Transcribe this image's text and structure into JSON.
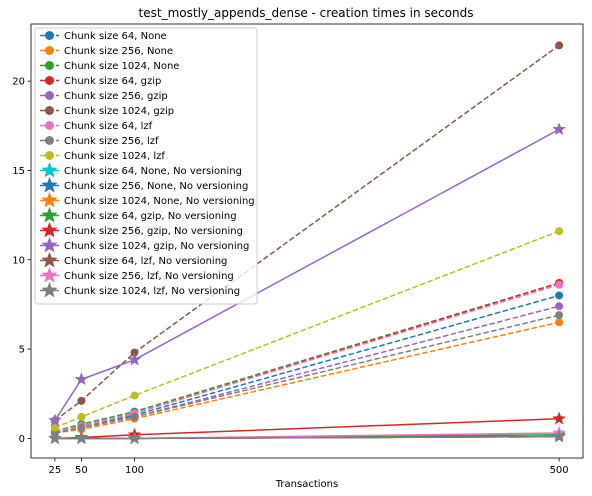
{
  "chart_data": {
    "type": "line",
    "title": "test_mostly_appends_dense - creation times in seconds",
    "xlabel": "Transactions",
    "ylabel": "",
    "x": [
      25,
      50,
      100,
      500
    ],
    "xticks": [
      "25",
      "50",
      "100",
      "500"
    ],
    "yticks": [
      "0",
      "5",
      "10",
      "15",
      "20"
    ],
    "xlim": [
      2.5,
      522.5
    ],
    "ylim": [
      -1.1,
      23.2
    ],
    "legend_position": "upper-left",
    "series": [
      {
        "name": "Chunk size 64, None",
        "color": "#1f77b4",
        "dashed": true,
        "marker": "circle",
        "values": [
          0.3,
          0.6,
          1.3,
          8.0
        ]
      },
      {
        "name": "Chunk size 256, None",
        "color": "#ff7f0e",
        "dashed": true,
        "marker": "circle",
        "values": [
          0.3,
          0.5,
          1.1,
          6.5
        ]
      },
      {
        "name": "Chunk size 1024, None",
        "color": "#2ca02c",
        "dashed": true,
        "marker": "circle",
        "values": [
          0.4,
          0.8,
          1.5,
          8.7
        ]
      },
      {
        "name": "Chunk size 64, gzip",
        "color": "#d62728",
        "dashed": true,
        "marker": "circle",
        "values": [
          0.4,
          0.7,
          1.4,
          8.7
        ]
      },
      {
        "name": "Chunk size 256, gzip",
        "color": "#9467bd",
        "dashed": true,
        "marker": "circle",
        "values": [
          0.3,
          0.6,
          1.2,
          7.4
        ]
      },
      {
        "name": "Chunk size 1024, gzip",
        "color": "#8c564b",
        "dashed": true,
        "marker": "circle",
        "values": [
          1.0,
          2.1,
          4.8,
          22.0
        ]
      },
      {
        "name": "Chunk size 64, lzf",
        "color": "#e377c2",
        "dashed": true,
        "marker": "circle",
        "values": [
          0.4,
          0.7,
          1.4,
          8.6
        ]
      },
      {
        "name": "Chunk size 256, lzf",
        "color": "#7f7f7f",
        "dashed": true,
        "marker": "circle",
        "values": [
          0.3,
          0.6,
          1.2,
          6.9
        ]
      },
      {
        "name": "Chunk size 1024, lzf",
        "color": "#bcbd22",
        "dashed": true,
        "marker": "circle",
        "values": [
          0.6,
          1.2,
          2.4,
          11.6
        ]
      },
      {
        "name": "Chunk size 64, None, No versioning",
        "color": "#17becf",
        "dashed": false,
        "marker": "star",
        "values": [
          0.0,
          0.0,
          0.0,
          0.1
        ]
      },
      {
        "name": "Chunk size 256, None, No versioning",
        "color": "#1f77b4",
        "dashed": false,
        "marker": "star",
        "values": [
          0.0,
          0.0,
          0.0,
          0.1
        ]
      },
      {
        "name": "Chunk size 1024, None, No versioning",
        "color": "#ff7f0e",
        "dashed": false,
        "marker": "star",
        "values": [
          0.0,
          0.0,
          0.0,
          0.1
        ]
      },
      {
        "name": "Chunk size 64, gzip, No versioning",
        "color": "#2ca02c",
        "dashed": false,
        "marker": "star",
        "values": [
          0.0,
          0.0,
          0.0,
          0.2
        ]
      },
      {
        "name": "Chunk size 256, gzip, No versioning",
        "color": "#d62728",
        "dashed": false,
        "marker": "star",
        "values": [
          0.0,
          0.05,
          0.2,
          1.1
        ]
      },
      {
        "name": "Chunk size 1024, gzip, No versioning",
        "color": "#9467bd",
        "dashed": false,
        "marker": "star",
        "values": [
          1.0,
          3.3,
          4.4,
          17.3
        ]
      },
      {
        "name": "Chunk size 64, lzf, No versioning",
        "color": "#8c564b",
        "dashed": false,
        "marker": "star",
        "values": [
          0.0,
          0.0,
          0.0,
          0.1
        ]
      },
      {
        "name": "Chunk size 256, lzf, No versioning",
        "color": "#e377c2",
        "dashed": false,
        "marker": "star",
        "values": [
          0.0,
          0.0,
          0.0,
          0.3
        ]
      },
      {
        "name": "Chunk size 1024, lzf, No versioning",
        "color": "#7f7f7f",
        "dashed": false,
        "marker": "star",
        "values": [
          0.0,
          0.0,
          0.0,
          0.1
        ]
      }
    ]
  }
}
